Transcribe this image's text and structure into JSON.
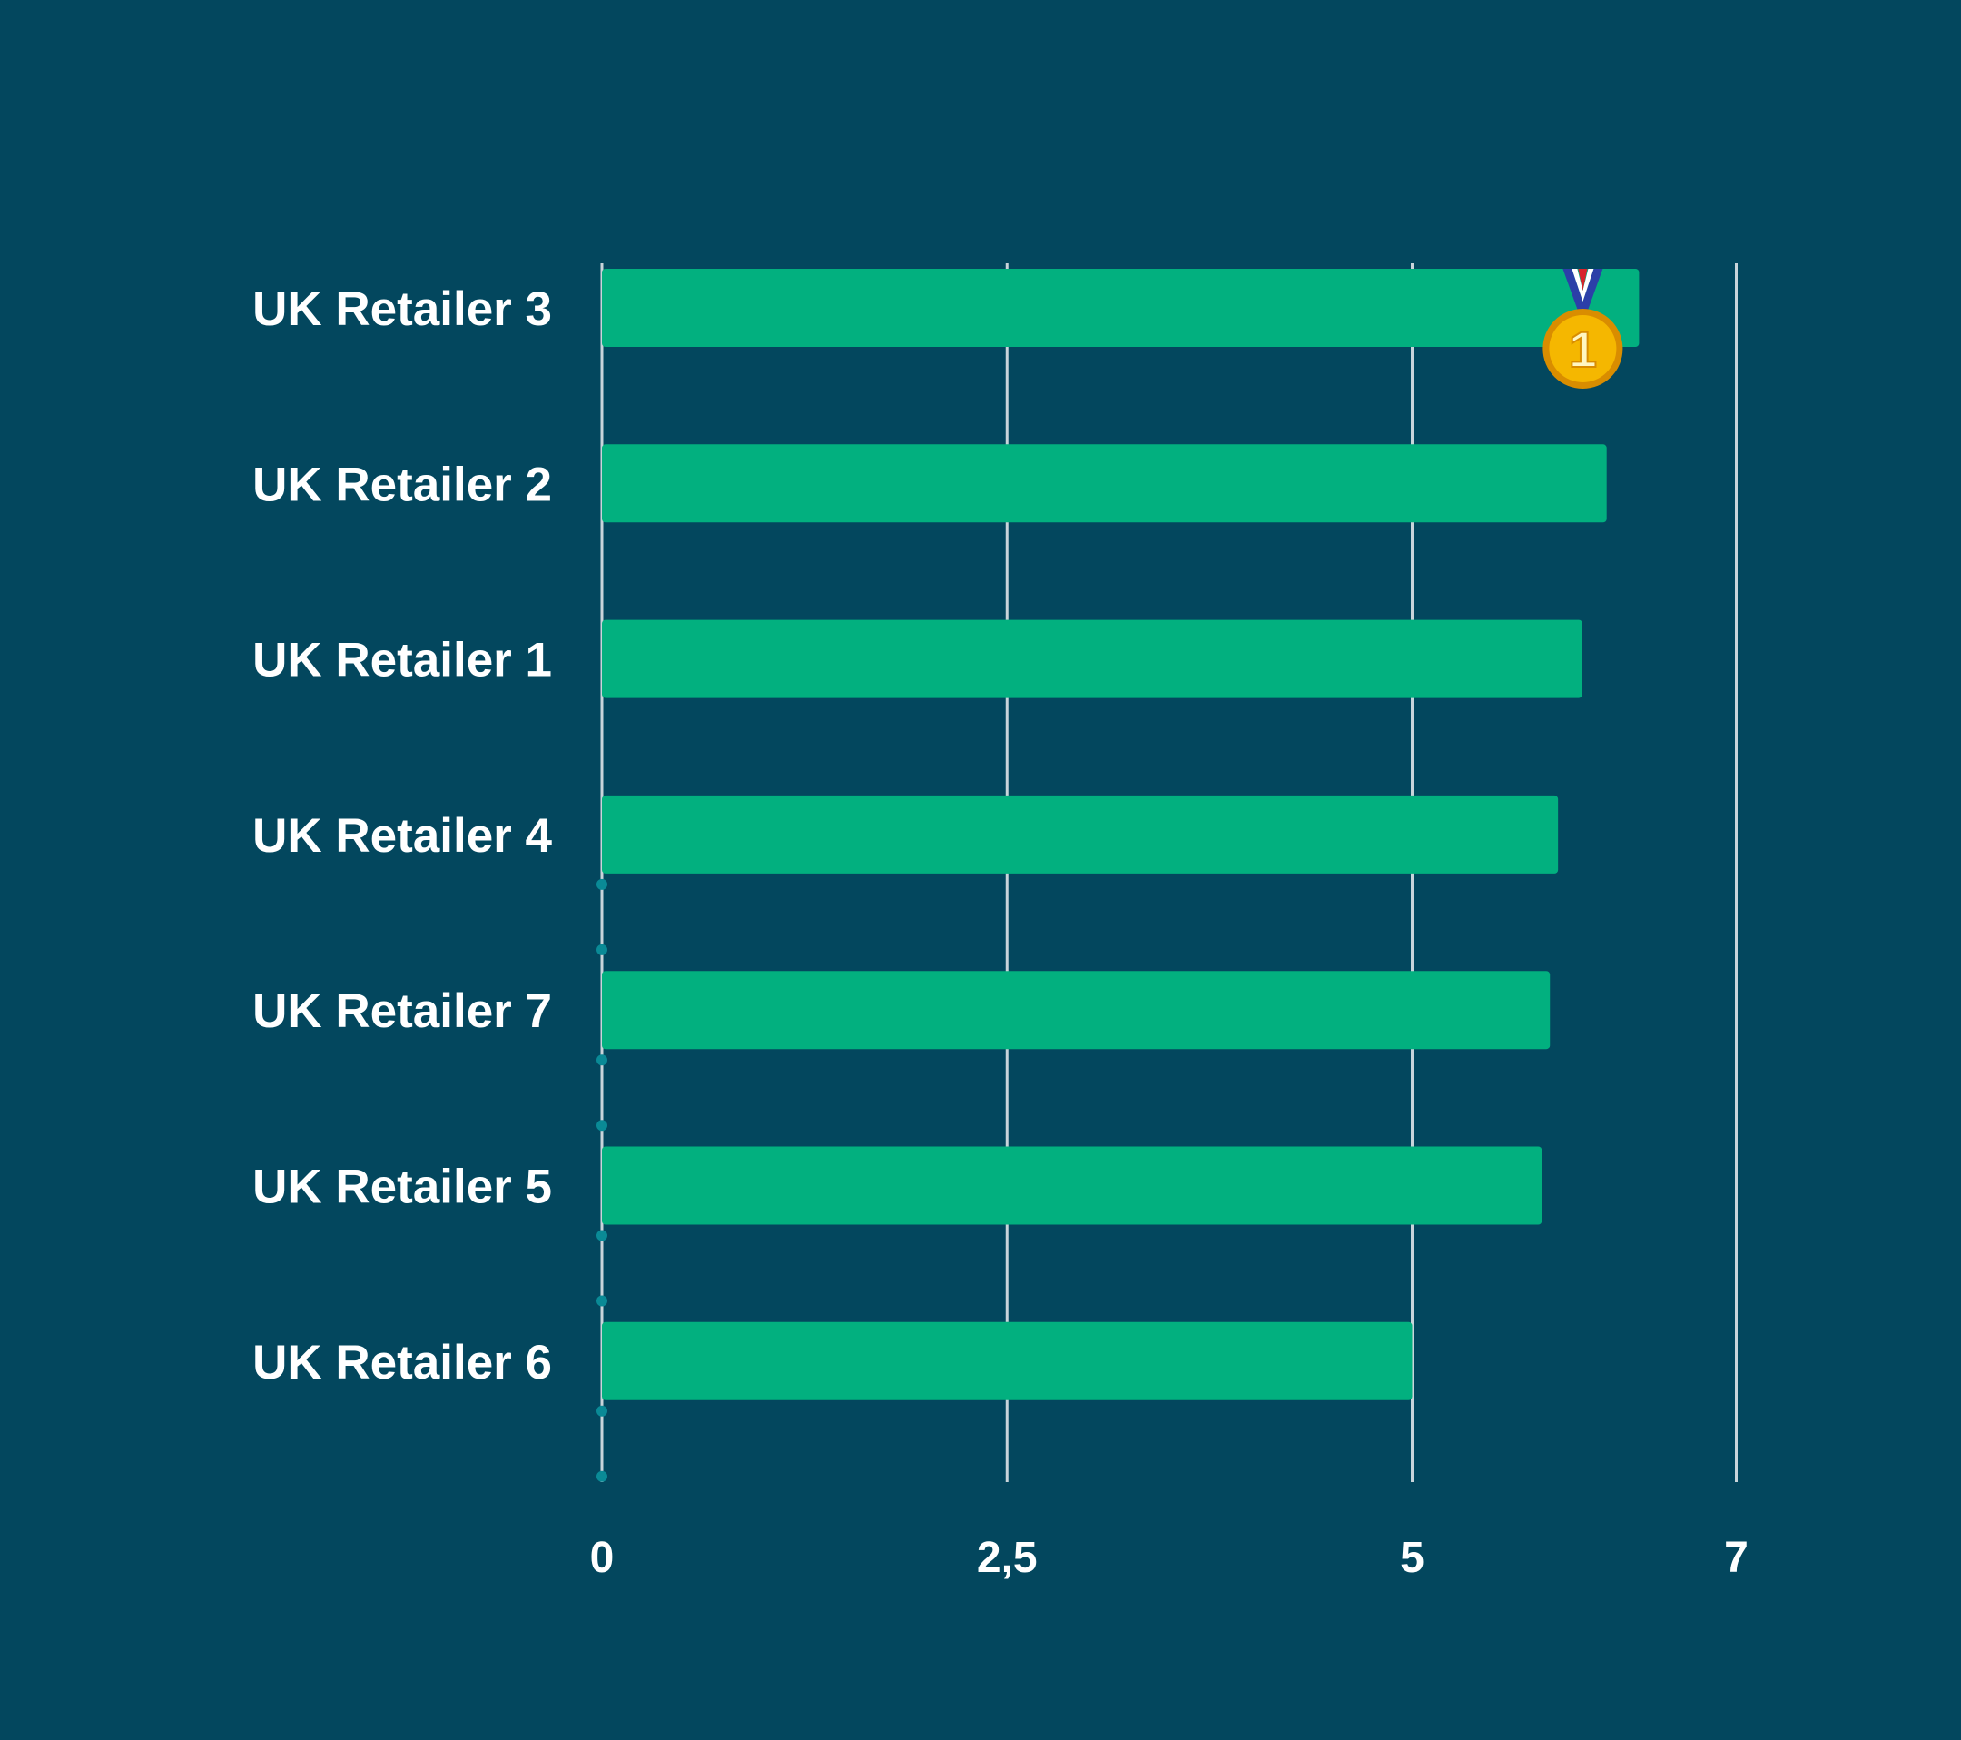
{
  "colors": {
    "background": "#03475e",
    "bar": "#02b07f",
    "gridline": "#c9d4da",
    "text": "#ffffff",
    "axis_dot": "#0a8a96",
    "medal_gold": "#f5b700",
    "medal_gold_dark": "#d98d00",
    "ribbon_blue": "#2b3fa8",
    "ribbon_red": "#d8232a",
    "ribbon_white": "#ffffff"
  },
  "chart_data": {
    "type": "bar",
    "orientation": "horizontal",
    "categories": [
      "UK Retailer 3",
      "UK Retailer 2",
      "UK Retailer 1",
      "UK Retailer 4",
      "UK Retailer 7",
      "UK Retailer 5",
      "UK Retailer 6"
    ],
    "values": [
      6.4,
      6.2,
      6.05,
      5.9,
      5.85,
      5.8,
      5.0
    ],
    "x_ticks": [
      {
        "value": 0,
        "label": "0"
      },
      {
        "value": 2.5,
        "label": "2,5"
      },
      {
        "value": 5,
        "label": "5"
      },
      {
        "value": 7,
        "label": "7"
      }
    ],
    "xlim": [
      0,
      7
    ],
    "grid": true,
    "title": "",
    "xlabel": "",
    "ylabel": "",
    "badge": {
      "category": "UK Retailer 3",
      "icon": "gold-medal-icon",
      "text": "1"
    }
  }
}
